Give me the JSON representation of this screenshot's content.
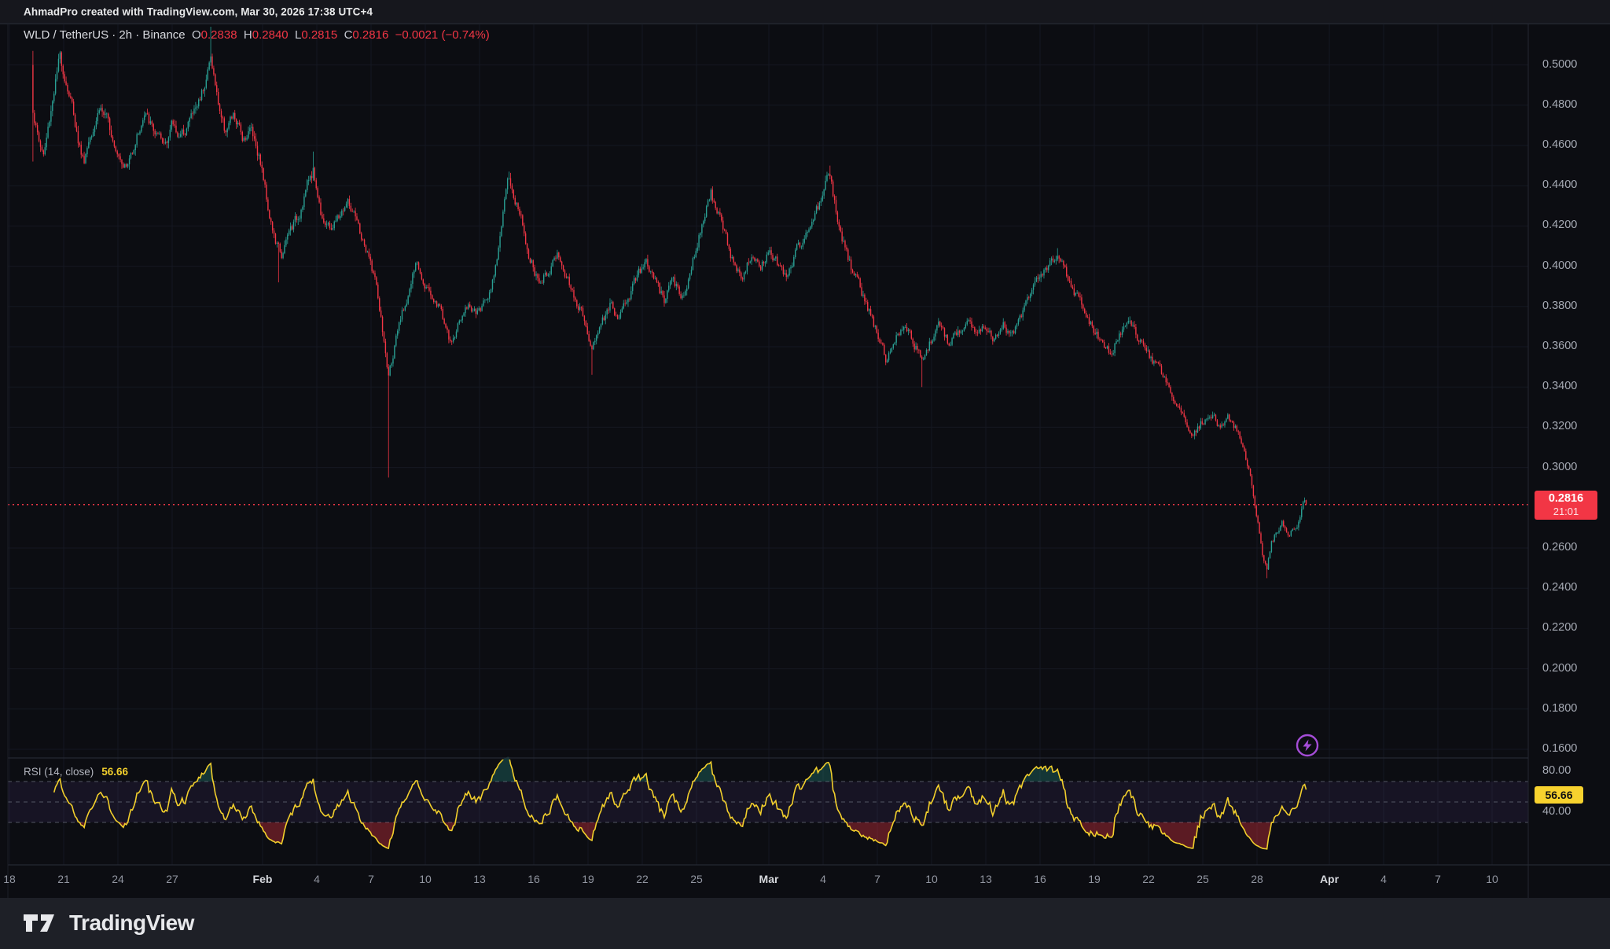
{
  "header": {
    "attribution": "AhmadPro created with TradingView.com, Mar 30, 2026 17:38 UTC+4"
  },
  "symbol_row": {
    "title": "WLD / TetherUS · 2h · Binance",
    "o_label": "O",
    "o": "0.2838",
    "h_label": "H",
    "h": "0.2840",
    "l_label": "L",
    "l": "0.2815",
    "c_label": "C",
    "c": "0.2816",
    "change": "−0.0021 (−0.74%)"
  },
  "price_axis": {
    "labels": [
      "0.5000",
      "0.4800",
      "0.4600",
      "0.4400",
      "0.4200",
      "0.4000",
      "0.3800",
      "0.3600",
      "0.3400",
      "0.3200",
      "0.3000",
      "0.2600",
      "0.2400",
      "0.2200",
      "0.2000",
      "0.1800",
      "0.1600"
    ]
  },
  "price_tag": {
    "price": "0.2816",
    "countdown": "21:01"
  },
  "rsi_pane": {
    "label": "RSI (14, close)",
    "value": "56.66",
    "tag": "56.66",
    "upper_label": "80.00",
    "lower_label": "40.00"
  },
  "time_axis": {
    "ticks": [
      [
        "18",
        0
      ],
      [
        "21",
        3
      ],
      [
        "24",
        6
      ],
      [
        "27",
        9
      ],
      [
        "Feb",
        14
      ],
      [
        "4",
        17
      ],
      [
        "7",
        20
      ],
      [
        "10",
        23
      ],
      [
        "13",
        26
      ],
      [
        "16",
        29
      ],
      [
        "19",
        32
      ],
      [
        "22",
        35
      ],
      [
        "25",
        38
      ],
      [
        "Mar",
        42
      ],
      [
        "4",
        45
      ],
      [
        "7",
        48
      ],
      [
        "10",
        51
      ],
      [
        "13",
        54
      ],
      [
        "16",
        57
      ],
      [
        "19",
        60
      ],
      [
        "22",
        63
      ],
      [
        "25",
        66
      ],
      [
        "28",
        69
      ],
      [
        "Apr",
        73
      ],
      [
        "4",
        76
      ],
      [
        "7",
        79
      ],
      [
        "10",
        82
      ]
    ]
  },
  "footer": {
    "brand": "TradingView"
  },
  "colors": {
    "up": "#2aa094",
    "down": "#f23645",
    "price_line": "#f23645",
    "rsi_line": "#f2cf2c",
    "rsi_tag_bg": "#f7d22e",
    "band_fill": "rgba(126,87,194,0.10)",
    "band_line": "#5a5e6a",
    "oversold_fill": "rgba(242,54,69,0.35)",
    "overbought_fill": "rgba(42,160,148,0.28)",
    "grid": "#181b24",
    "boost_purple": "#a54dd8",
    "tag_bg": "#f23645"
  },
  "chart_data": {
    "type": "candlestick",
    "symbol": "WLD/TetherUS",
    "exchange": "Binance",
    "interval": "2h",
    "last_bar": {
      "open": 0.2838,
      "high": 0.284,
      "low": 0.2815,
      "close": 0.2816,
      "change": -0.0021,
      "change_pct": -0.74
    },
    "price_axis_range_shown": [
      0.16,
      0.52
    ],
    "time_range_shown": [
      "Jan 18",
      "Apr 12"
    ],
    "last_price": 0.2816,
    "close_keyframes": [
      [
        1.3,
        0.478
      ],
      [
        1.6,
        0.463
      ],
      [
        1.9,
        0.455
      ],
      [
        2.2,
        0.472
      ],
      [
        2.5,
        0.49
      ],
      [
        2.8,
        0.504
      ],
      [
        3.1,
        0.493
      ],
      [
        3.5,
        0.479
      ],
      [
        3.8,
        0.463
      ],
      [
        4.1,
        0.452
      ],
      [
        4.5,
        0.467
      ],
      [
        5.0,
        0.48
      ],
      [
        5.5,
        0.47
      ],
      [
        6.0,
        0.458
      ],
      [
        6.5,
        0.449
      ],
      [
        7.0,
        0.464
      ],
      [
        7.5,
        0.475
      ],
      [
        8.0,
        0.467
      ],
      [
        8.5,
        0.459
      ],
      [
        9.0,
        0.471
      ],
      [
        9.5,
        0.464
      ],
      [
        10.0,
        0.474
      ],
      [
        10.4,
        0.48
      ],
      [
        10.8,
        0.492
      ],
      [
        11.15,
        0.504
      ],
      [
        11.5,
        0.483
      ],
      [
        11.9,
        0.468
      ],
      [
        12.4,
        0.474
      ],
      [
        12.9,
        0.464
      ],
      [
        13.4,
        0.469
      ],
      [
        13.9,
        0.452
      ],
      [
        14.3,
        0.43
      ],
      [
        14.7,
        0.412
      ],
      [
        15.1,
        0.405
      ],
      [
        15.5,
        0.418
      ],
      [
        16.0,
        0.425
      ],
      [
        16.4,
        0.439
      ],
      [
        16.8,
        0.448
      ],
      [
        17.2,
        0.428
      ],
      [
        17.7,
        0.418
      ],
      [
        18.2,
        0.424
      ],
      [
        18.7,
        0.432
      ],
      [
        19.2,
        0.421
      ],
      [
        19.7,
        0.408
      ],
      [
        20.2,
        0.395
      ],
      [
        20.6,
        0.37
      ],
      [
        20.95,
        0.345
      ],
      [
        21.3,
        0.36
      ],
      [
        21.7,
        0.375
      ],
      [
        22.1,
        0.388
      ],
      [
        22.5,
        0.401
      ],
      [
        22.9,
        0.394
      ],
      [
        23.4,
        0.385
      ],
      [
        23.9,
        0.378
      ],
      [
        24.4,
        0.36
      ],
      [
        24.9,
        0.373
      ],
      [
        25.4,
        0.381
      ],
      [
        25.9,
        0.376
      ],
      [
        26.3,
        0.383
      ],
      [
        26.7,
        0.392
      ],
      [
        27.0,
        0.408
      ],
      [
        27.3,
        0.426
      ],
      [
        27.6,
        0.443
      ],
      [
        27.9,
        0.435
      ],
      [
        28.3,
        0.424
      ],
      [
        28.8,
        0.404
      ],
      [
        29.3,
        0.39
      ],
      [
        29.8,
        0.398
      ],
      [
        30.3,
        0.406
      ],
      [
        30.8,
        0.395
      ],
      [
        31.3,
        0.385
      ],
      [
        31.8,
        0.373
      ],
      [
        32.2,
        0.36
      ],
      [
        32.7,
        0.371
      ],
      [
        33.2,
        0.381
      ],
      [
        33.7,
        0.374
      ],
      [
        34.2,
        0.384
      ],
      [
        34.7,
        0.395
      ],
      [
        35.2,
        0.402
      ],
      [
        35.7,
        0.392
      ],
      [
        36.2,
        0.383
      ],
      [
        36.7,
        0.392
      ],
      [
        37.2,
        0.385
      ],
      [
        37.6,
        0.396
      ],
      [
        38.0,
        0.411
      ],
      [
        38.4,
        0.425
      ],
      [
        38.8,
        0.437
      ],
      [
        39.1,
        0.428
      ],
      [
        39.5,
        0.417
      ],
      [
        40.0,
        0.402
      ],
      [
        40.5,
        0.396
      ],
      [
        41.0,
        0.404
      ],
      [
        41.5,
        0.398
      ],
      [
        42.0,
        0.409
      ],
      [
        42.5,
        0.401
      ],
      [
        43.0,
        0.395
      ],
      [
        43.5,
        0.407
      ],
      [
        44.0,
        0.415
      ],
      [
        44.5,
        0.424
      ],
      [
        45.0,
        0.436
      ],
      [
        45.35,
        0.446
      ],
      [
        45.7,
        0.428
      ],
      [
        46.1,
        0.412
      ],
      [
        46.6,
        0.398
      ],
      [
        47.1,
        0.388
      ],
      [
        47.6,
        0.376
      ],
      [
        48.1,
        0.364
      ],
      [
        48.5,
        0.353
      ],
      [
        49.0,
        0.366
      ],
      [
        49.5,
        0.372
      ],
      [
        50.0,
        0.362
      ],
      [
        50.5,
        0.353
      ],
      [
        51.0,
        0.364
      ],
      [
        51.5,
        0.371
      ],
      [
        52.0,
        0.36
      ],
      [
        52.5,
        0.368
      ],
      [
        53.0,
        0.375
      ],
      [
        53.5,
        0.366
      ],
      [
        54.0,
        0.372
      ],
      [
        54.5,
        0.364
      ],
      [
        55.0,
        0.371
      ],
      [
        55.5,
        0.365
      ],
      [
        56.0,
        0.376
      ],
      [
        56.5,
        0.386
      ],
      [
        57.0,
        0.394
      ],
      [
        57.5,
        0.4
      ],
      [
        58.0,
        0.404
      ],
      [
        58.4,
        0.398
      ],
      [
        58.9,
        0.388
      ],
      [
        59.4,
        0.38
      ],
      [
        59.9,
        0.37
      ],
      [
        60.4,
        0.363
      ],
      [
        60.9,
        0.356
      ],
      [
        61.4,
        0.366
      ],
      [
        61.9,
        0.372
      ],
      [
        62.4,
        0.364
      ],
      [
        62.9,
        0.357
      ],
      [
        63.4,
        0.35
      ],
      [
        63.9,
        0.344
      ],
      [
        64.4,
        0.334
      ],
      [
        64.9,
        0.324
      ],
      [
        65.4,
        0.316
      ],
      [
        65.9,
        0.322
      ],
      [
        66.4,
        0.328
      ],
      [
        66.9,
        0.32
      ],
      [
        67.4,
        0.326
      ],
      [
        67.9,
        0.318
      ],
      [
        68.3,
        0.308
      ],
      [
        68.7,
        0.292
      ],
      [
        69.0,
        0.275
      ],
      [
        69.3,
        0.256
      ],
      [
        69.55,
        0.249
      ],
      [
        69.8,
        0.262
      ],
      [
        70.1,
        0.268
      ],
      [
        70.4,
        0.272
      ],
      [
        70.7,
        0.265
      ],
      [
        71.0,
        0.269
      ],
      [
        71.3,
        0.274
      ],
      [
        71.55,
        0.283
      ],
      [
        71.75,
        0.2816
      ]
    ],
    "wick_spikes": [
      {
        "t": 1.32,
        "hi": 0.507,
        "lo": 0.452
      },
      {
        "t": 11.15,
        "hi": 0.519
      },
      {
        "t": 14.9,
        "lo": 0.392
      },
      {
        "t": 16.8,
        "hi": 0.457
      },
      {
        "t": 20.95,
        "lo": 0.295
      },
      {
        "t": 27.6,
        "hi": 0.447
      },
      {
        "t": 32.2,
        "lo": 0.346
      },
      {
        "t": 45.35,
        "hi": 0.45
      },
      {
        "t": 50.5,
        "lo": 0.34
      },
      {
        "t": 58.0,
        "hi": 0.409
      },
      {
        "t": 69.55,
        "lo": 0.245
      }
    ],
    "rsi": {
      "period": 14,
      "source": "close",
      "last": 56.66,
      "levels": [
        70,
        50,
        30
      ],
      "axis_labels_shown": [
        80,
        40
      ]
    }
  }
}
